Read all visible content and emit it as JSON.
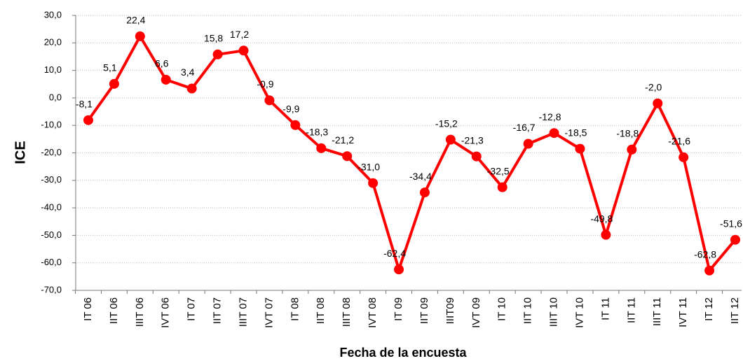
{
  "chart_data": {
    "type": "line",
    "x_label": "Fecha de la encuesta",
    "y_label": "ICE",
    "categories": [
      "IT 06",
      "IIT 06",
      "IIIT 06",
      "IVT 06",
      "IT 07",
      "IIT 07",
      "IIIT 07",
      "IVT 07",
      "IT 08",
      "IIT 08",
      "IIIT 08",
      "IVT 08",
      "IT 09",
      "IIT 09",
      "IIIT09",
      "IVT 09",
      "IT 10",
      "IIT 10",
      "IIIT 10",
      "IVT 10",
      "IT 11",
      "IIT 11",
      "IIIT 11",
      "IVT 11",
      "IT 12",
      "IIT 12"
    ],
    "series": [
      {
        "name": "ICE",
        "color": "#ff0000",
        "values": [
          -8.1,
          5.1,
          22.4,
          6.6,
          3.4,
          15.8,
          17.2,
          -0.9,
          -9.9,
          -18.3,
          -21.2,
          -31.0,
          -62.4,
          -34.4,
          -15.2,
          -21.3,
          -32.5,
          -16.7,
          -12.8,
          -18.5,
          -49.8,
          -18.8,
          -2.0,
          -21.6,
          -62.8,
          -51.6
        ],
        "value_labels": [
          "-8,1",
          "5,1",
          "22,4",
          "6,6",
          "3,4",
          "15,8",
          "17,2",
          "-0,9",
          "-9,9",
          "-18,3",
          "-21,2",
          "-31,0",
          "-62,4",
          "-34,4",
          "-15,2",
          "-21,3",
          "-32,5",
          "-16,7",
          "-12,8",
          "-18,5",
          "-49,8",
          "-18,8",
          "-2,0",
          "-21,6",
          "-62,8",
          "-51,6"
        ]
      }
    ],
    "ylim": [
      -70,
      30
    ],
    "yticks": [
      {
        "value": -70,
        "label": "-70,0"
      },
      {
        "value": -60,
        "label": "-60,0"
      },
      {
        "value": -50,
        "label": "-50,0"
      },
      {
        "value": -40,
        "label": "-40,0"
      },
      {
        "value": -30,
        "label": "-30,0"
      },
      {
        "value": -20,
        "label": "-20,0"
      },
      {
        "value": -10,
        "label": "-10,0"
      },
      {
        "value": 0,
        "label": "0,0"
      },
      {
        "value": 10,
        "label": "10,0"
      },
      {
        "value": 20,
        "label": "20,0"
      },
      {
        "value": 30,
        "label": "30,0"
      }
    ],
    "grid": true
  }
}
